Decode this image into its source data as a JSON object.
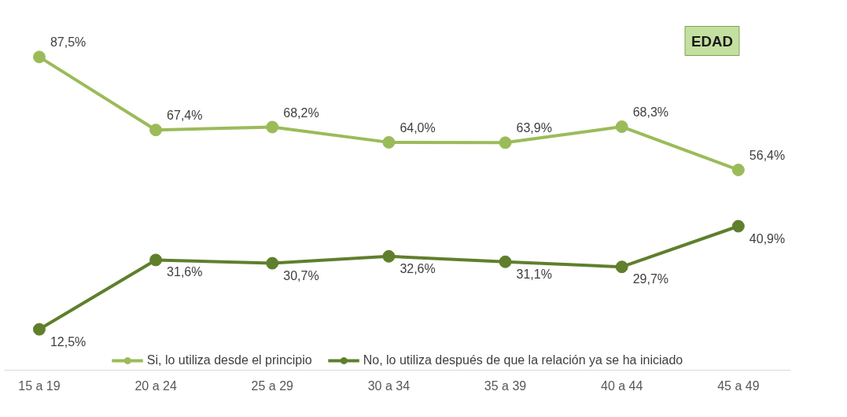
{
  "chart_data": {
    "type": "line",
    "categories": [
      "15 a 19",
      "20 a 24",
      "25 a 29",
      "30 a 34",
      "35 a 39",
      "40 a 44",
      "45 a 49"
    ],
    "series": [
      {
        "name": "Si, lo utiliza desde el principio",
        "color": "#9bbb59",
        "values": [
          87.5,
          67.4,
          68.2,
          64.0,
          63.9,
          68.3,
          56.4
        ],
        "value_labels": [
          "87,5%",
          "67,4%",
          "68,2%",
          "64,0%",
          "63,9%",
          "68,3%",
          "56,4%"
        ]
      },
      {
        "name": "No, lo utiliza después de que la relación ya se ha iniciado",
        "color": "#5f7f2c",
        "values": [
          12.5,
          31.6,
          30.7,
          32.6,
          31.1,
          29.7,
          40.9
        ],
        "value_labels": [
          "12,5%",
          "31,6%",
          "30,7%",
          "32,6%",
          "31,1%",
          "29,7%",
          "40,9%"
        ]
      }
    ],
    "tick_labels": "x",
    "marker": "circle",
    "line_style": "solid",
    "legend": "bottom",
    "annotations": [
      "EDAD"
    ]
  }
}
